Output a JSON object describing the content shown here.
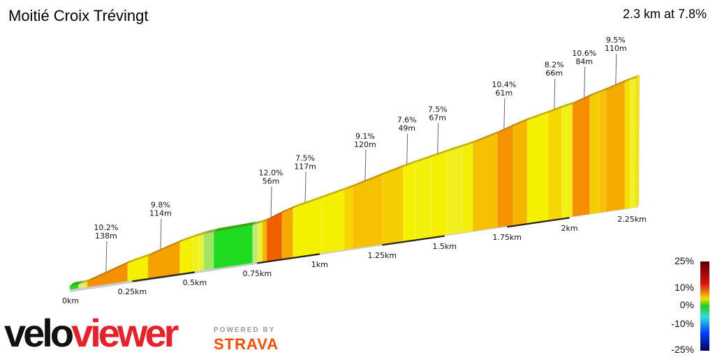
{
  "header": {
    "title": "Moitié Croix Trévingt",
    "summary": "2.3 km at 7.8%"
  },
  "logo": {
    "part1": "velo",
    "part2": "viewer",
    "powered_by": "POWERED BY",
    "strava": "STRAVA"
  },
  "legend": {
    "labels": [
      "25%",
      "10%",
      "0%",
      "-10%",
      "-25%"
    ],
    "colors": [
      "#5a0000",
      "#e01010",
      "#f0e000",
      "#20cc20",
      "#30e0e0",
      "#0040ff",
      "#000060"
    ]
  },
  "chart_data": {
    "type": "area",
    "title": "Moitié Croix Trévingt",
    "total_distance_km": 2.3,
    "avg_grade_pct": 7.8,
    "xlabel": "",
    "ylabel": "",
    "x_ticks": [
      "0km",
      "0.25km",
      "0.5km",
      "0.75km",
      "1km",
      "1.25km",
      "1.5km",
      "1.75km",
      "2km",
      "2.25km"
    ],
    "x_tick_values": [
      0,
      0.25,
      0.5,
      0.75,
      1,
      1.25,
      1.5,
      1.75,
      2,
      2.25
    ],
    "segments": [
      {
        "km": 0.0,
        "grade": 1
      },
      {
        "km": 0.036,
        "grade": 4
      },
      {
        "km": 0.056,
        "grade": 6
      },
      {
        "km": 0.07,
        "grade": 10.5
      },
      {
        "km": 0.232,
        "grade": 7
      },
      {
        "km": 0.313,
        "grade": 9.8
      },
      {
        "km": 0.441,
        "grade": 7
      },
      {
        "km": 0.494,
        "grade": 6
      },
      {
        "km": 0.517,
        "grade": 5
      },
      {
        "km": 0.536,
        "grade": 3
      },
      {
        "km": 0.576,
        "grade": 1
      },
      {
        "km": 0.732,
        "grade": 3.5
      },
      {
        "km": 0.754,
        "grade": 5
      },
      {
        "km": 0.771,
        "grade": 9
      },
      {
        "km": 0.788,
        "grade": 12
      },
      {
        "km": 0.85,
        "grade": 9.5
      },
      {
        "km": 0.894,
        "grade": 7
      },
      {
        "km": 1.014,
        "grade": 7
      },
      {
        "km": 1.098,
        "grade": 7.8
      },
      {
        "km": 1.131,
        "grade": 8.5
      },
      {
        "km": 1.252,
        "grade": 8
      },
      {
        "km": 1.335,
        "grade": 7
      },
      {
        "km": 1.383,
        "grade": 6.5
      },
      {
        "km": 1.448,
        "grade": 7
      },
      {
        "km": 1.509,
        "grade": 5.8
      },
      {
        "km": 1.571,
        "grade": 6.8
      },
      {
        "km": 1.613,
        "grade": 8.5
      },
      {
        "km": 1.711,
        "grade": 10.4
      },
      {
        "km": 1.775,
        "grade": 9
      },
      {
        "km": 1.831,
        "grade": 7
      },
      {
        "km": 1.915,
        "grade": 7.7
      },
      {
        "km": 1.97,
        "grade": 6
      },
      {
        "km": 2.012,
        "grade": 10.6
      },
      {
        "km": 2.082,
        "grade": 8
      },
      {
        "km": 2.119,
        "grade": 8.5
      },
      {
        "km": 2.146,
        "grade": 9.5
      },
      {
        "km": 2.222,
        "grade": 7.5
      },
      {
        "km": 2.244,
        "grade": 5.5
      }
    ],
    "end_km": 2.264,
    "annotations": [
      {
        "km": 0.145,
        "grade": "10.2%",
        "length": "138m"
      },
      {
        "km": 0.363,
        "grade": "9.8%",
        "length": "114m"
      },
      {
        "km": 0.805,
        "grade": "12.0%",
        "length": "56m"
      },
      {
        "km": 0.942,
        "grade": "7.5%",
        "length": "117m"
      },
      {
        "km": 1.182,
        "grade": "9.1%",
        "length": "120m"
      },
      {
        "km": 1.349,
        "grade": "7.6%",
        "length": "49m"
      },
      {
        "km": 1.472,
        "grade": "7.5%",
        "length": "67m"
      },
      {
        "km": 1.738,
        "grade": "10.4%",
        "length": "61m"
      },
      {
        "km": 1.939,
        "grade": "8.2%",
        "length": "66m"
      },
      {
        "km": 2.059,
        "grade": "10.6%",
        "length": "84m"
      },
      {
        "km": 2.185,
        "grade": "9.5%",
        "length": "110m"
      }
    ]
  }
}
